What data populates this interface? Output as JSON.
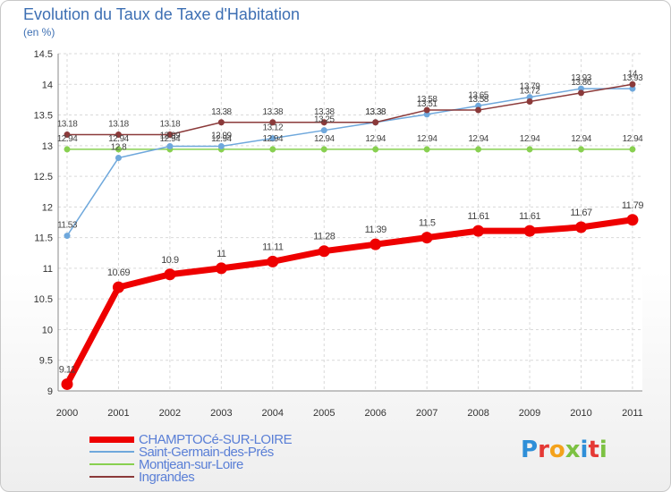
{
  "title": "Evolution du Taux de Taxe d'Habitation",
  "unit_label": "(en %)",
  "logo_text": "Proxiti",
  "chart_data": {
    "type": "line",
    "x": [
      "2000",
      "2001",
      "2002",
      "2003",
      "2004",
      "2005",
      "2006",
      "2007",
      "2008",
      "2009",
      "2010",
      "2011"
    ],
    "ylim": [
      9,
      14.5
    ],
    "yticks": [
      "9",
      "9.5",
      "10",
      "10.5",
      "11",
      "11.5",
      "12",
      "12.5",
      "13",
      "13.5",
      "14",
      "14.5"
    ],
    "grid": true,
    "legend_position": "bottom-left",
    "series": [
      {
        "name": "CHAMPTOCé-SUR-LOIRE",
        "color": "#ee0000",
        "values": [
          9.11,
          10.69,
          10.9,
          11,
          11.11,
          11.28,
          11.39,
          11.5,
          11.61,
          11.61,
          11.67,
          11.79
        ],
        "labels": [
          "9.11",
          "10.69",
          "10.9",
          "11",
          "11.11",
          "11.28",
          "11.39",
          "11.5",
          "11.61",
          "11.61",
          "11.67",
          "11.79"
        ]
      },
      {
        "name": "Saint-Germain-des-Prés",
        "color": "#6fa8dc",
        "values": [
          11.53,
          12.8,
          12.99,
          12.99,
          13.12,
          13.25,
          13.38,
          13.51,
          13.65,
          13.79,
          13.93,
          13.93
        ],
        "labels": [
          "11.53",
          "12.8",
          "12.99",
          "12.99",
          "13.12",
          "13.25",
          "13.38",
          "13.51",
          "13.65",
          "13.79",
          "13.93",
          "13.93"
        ]
      },
      {
        "name": "Montjean-sur-Loire",
        "color": "#88d050",
        "values": [
          12.94,
          12.94,
          12.94,
          12.94,
          12.94,
          12.94,
          12.94,
          12.94,
          12.94,
          12.94,
          12.94,
          12.94
        ],
        "labels": [
          "12.94",
          "12.94",
          "12.94",
          "12.94",
          "12.94",
          "12.94",
          "12.94",
          "12.94",
          "12.94",
          "12.94",
          "12.94",
          "12.94"
        ]
      },
      {
        "name": "Ingrandes",
        "color": "#8b3a3a",
        "values": [
          13.18,
          13.18,
          13.18,
          13.38,
          13.38,
          13.38,
          13.38,
          13.58,
          13.58,
          13.72,
          13.86,
          14
        ],
        "labels": [
          "13.18",
          "13.18",
          "13.18",
          "13.38",
          "13.38",
          "13.38",
          "13.38",
          "13.58",
          "13.58",
          "13.72",
          "13.86",
          "14"
        ]
      }
    ]
  }
}
